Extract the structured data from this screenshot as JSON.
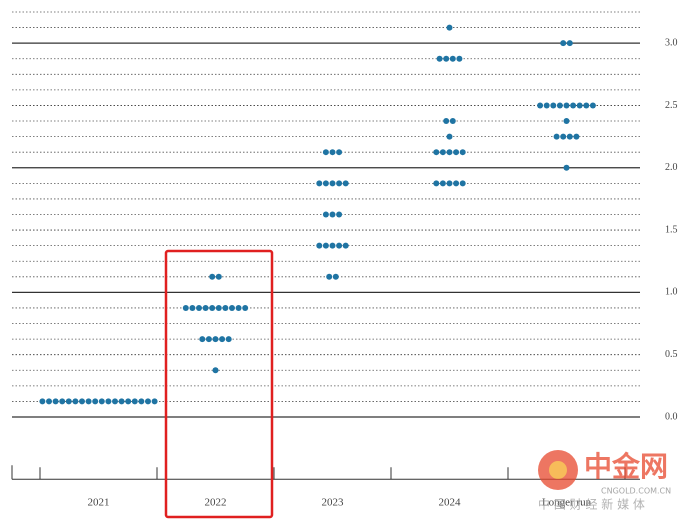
{
  "chart_data": {
    "type": "dotplot",
    "categories": [
      "2021",
      "2022",
      "2023",
      "2024",
      "Longer run"
    ],
    "series": [
      {
        "color": "#1f74a3",
        "values": [
          [
            0.125,
            0.125,
            0.125,
            0.125,
            0.125,
            0.125,
            0.125,
            0.125,
            0.125,
            0.125,
            0.125,
            0.125,
            0.125,
            0.125,
            0.125,
            0.125,
            0.125,
            0.125
          ],
          [
            0.375,
            0.625,
            0.625,
            0.625,
            0.625,
            0.625,
            0.875,
            0.875,
            0.875,
            0.875,
            0.875,
            0.875,
            0.875,
            0.875,
            0.875,
            0.875,
            1.125,
            1.125
          ],
          [
            1.125,
            1.125,
            1.375,
            1.375,
            1.375,
            1.375,
            1.375,
            1.625,
            1.625,
            1.625,
            1.875,
            1.875,
            1.875,
            1.875,
            1.875,
            2.125,
            2.125,
            2.125
          ],
          [
            1.875,
            1.875,
            1.875,
            1.875,
            1.875,
            2.125,
            2.125,
            2.125,
            2.125,
            2.125,
            2.25,
            2.375,
            2.375,
            2.875,
            2.875,
            2.875,
            2.875,
            3.125
          ],
          [
            2.0,
            2.25,
            2.25,
            2.25,
            2.25,
            2.375,
            2.5,
            2.5,
            2.5,
            2.5,
            2.5,
            2.5,
            2.5,
            2.5,
            2.5,
            3.0,
            3.0
          ]
        ]
      }
    ],
    "ylim": [
      -0.5,
      3.25
    ],
    "yticks": [
      {
        "value": 0,
        "label": "0.0"
      },
      0.5,
      {
        "value": 1,
        "label": "1.0"
      },
      1.5,
      {
        "value": 2,
        "label": "2.0"
      },
      2.5,
      {
        "value": 3,
        "label": "3.0"
      }
    ],
    "grid_step": 0.125,
    "highlight_category": 1,
    "watermark": {
      "brand": "中金网",
      "site": "CNGOLD.COM.CN",
      "slogan": "中 国 财 经 新 媒 体"
    }
  }
}
